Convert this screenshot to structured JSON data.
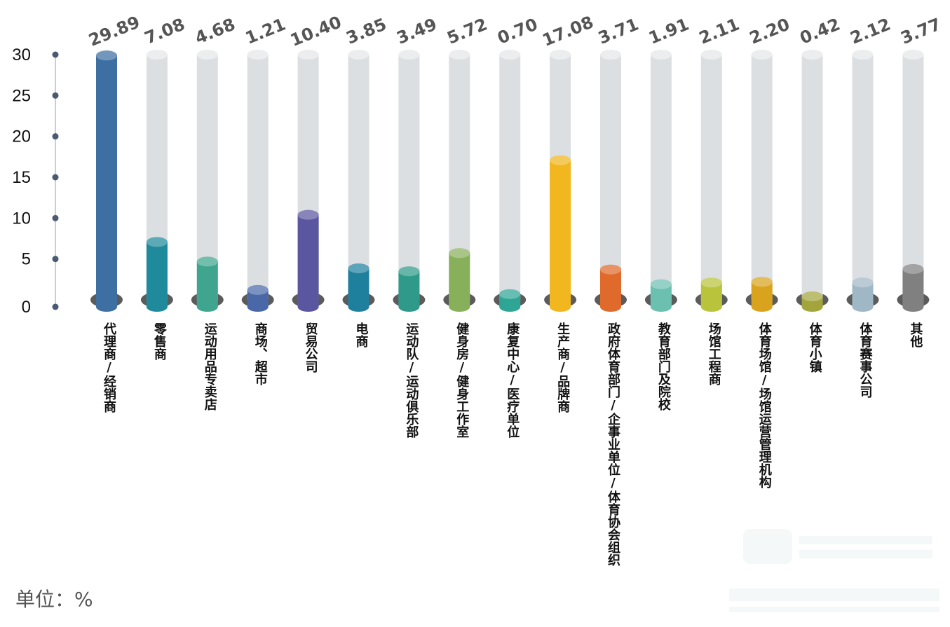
{
  "chart_data": {
    "type": "bar",
    "categories": [
      "代理商/经销商",
      "零售商",
      "运动用品专卖店",
      "商场、超市",
      "贸易公司",
      "电商",
      "运动队/运动俱乐部",
      "健身房/健身工作室",
      "康复中心/医疗单位",
      "生产商/品牌商",
      "政府体育部门/企事业单位/体育协会组织",
      "教育部门及院校",
      "场馆工程商",
      "体育场馆/场馆运营管理机构",
      "体育小镇",
      "体育赛事公司",
      "其他"
    ],
    "values": [
      29.89,
      7.08,
      4.68,
      1.21,
      10.4,
      3.85,
      3.49,
      5.72,
      0.7,
      17.08,
      3.71,
      1.91,
      2.11,
      2.2,
      0.42,
      2.12,
      3.77
    ],
    "value_labels": [
      "29.89",
      "7.08",
      "4.68",
      "1.21",
      "10.40",
      "3.85",
      "3.49",
      "5.72",
      "0.70",
      "17.08",
      "3.71",
      "1.91",
      "2.11",
      "2.20",
      "0.42",
      "2.12",
      "3.77"
    ],
    "colors": [
      "#3d6fa3",
      "#1f8a9c",
      "#3fa58e",
      "#4a68a8",
      "#5b56a0",
      "#1f809e",
      "#2f9a8a",
      "#88b05a",
      "#2ea595",
      "#f2b61f",
      "#e06a2c",
      "#6cc0b0",
      "#b9c43c",
      "#d9a31d",
      "#a2a53c",
      "#a0b8c6",
      "#808080"
    ],
    "y_ticks": [
      "0",
      "5",
      "10",
      "15",
      "20",
      "25",
      "30"
    ],
    "ylim": [
      0,
      30
    ],
    "unit_label": "单位：%",
    "grid": false,
    "legend": "none"
  }
}
